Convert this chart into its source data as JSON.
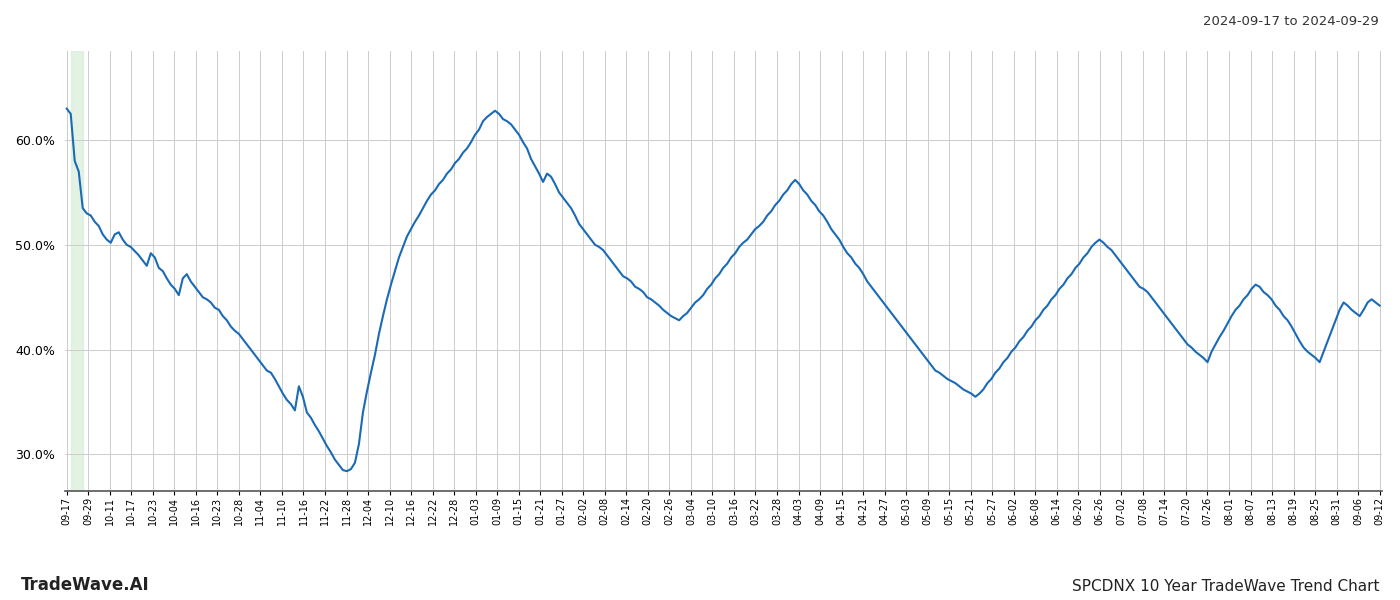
{
  "title_right": "2024-09-17 to 2024-09-29",
  "title_bottom_left": "TradeWave.AI",
  "title_bottom_right": "SPCDNX 10 Year TradeWave Trend Chart",
  "line_color": "#1a6ab5",
  "line_width": 1.5,
  "bg_color": "#ffffff",
  "grid_color": "#cccccc",
  "shade_color": "#d4ecd4",
  "shade_alpha": 0.65,
  "ylim_low": 0.265,
  "ylim_high": 0.685,
  "yticks": [
    0.3,
    0.4,
    0.5,
    0.6
  ],
  "shade_xstart": 1,
  "shade_xend": 4,
  "xtick_labels": [
    "09-17",
    "09-29",
    "10-11",
    "10-17",
    "10-23",
    "10-04",
    "10-16",
    "10-23",
    "10-28",
    "11-04",
    "11-10",
    "11-16",
    "11-22",
    "11-28",
    "12-04",
    "12-10",
    "12-16",
    "12-22",
    "12-28",
    "01-03",
    "01-09",
    "01-15",
    "01-21",
    "01-27",
    "02-02",
    "02-08",
    "02-14",
    "02-20",
    "02-26",
    "03-04",
    "03-10",
    "03-16",
    "03-22",
    "03-28",
    "04-03",
    "04-09",
    "04-15",
    "04-21",
    "04-27",
    "05-03",
    "05-09",
    "05-15",
    "05-21",
    "05-27",
    "06-02",
    "06-08",
    "06-14",
    "06-20",
    "06-26",
    "07-02",
    "07-08",
    "07-14",
    "07-20",
    "07-26",
    "08-01",
    "08-07",
    "08-13",
    "08-19",
    "08-25",
    "08-31",
    "09-06",
    "09-12"
  ],
  "values": [
    0.63,
    0.625,
    0.58,
    0.57,
    0.535,
    0.53,
    0.528,
    0.522,
    0.518,
    0.51,
    0.505,
    0.502,
    0.51,
    0.512,
    0.505,
    0.5,
    0.498,
    0.494,
    0.49,
    0.485,
    0.48,
    0.492,
    0.488,
    0.478,
    0.475,
    0.468,
    0.462,
    0.458,
    0.452,
    0.468,
    0.472,
    0.465,
    0.46,
    0.455,
    0.45,
    0.448,
    0.445,
    0.44,
    0.438,
    0.432,
    0.428,
    0.422,
    0.418,
    0.415,
    0.41,
    0.405,
    0.4,
    0.395,
    0.39,
    0.385,
    0.38,
    0.378,
    0.372,
    0.365,
    0.358,
    0.352,
    0.348,
    0.342,
    0.365,
    0.355,
    0.34,
    0.335,
    0.328,
    0.322,
    0.315,
    0.308,
    0.302,
    0.295,
    0.29,
    0.285,
    0.284,
    0.286,
    0.292,
    0.31,
    0.34,
    0.36,
    0.378,
    0.395,
    0.415,
    0.432,
    0.448,
    0.462,
    0.475,
    0.488,
    0.498,
    0.508,
    0.515,
    0.522,
    0.528,
    0.535,
    0.542,
    0.548,
    0.552,
    0.558,
    0.562,
    0.568,
    0.572,
    0.578,
    0.582,
    0.588,
    0.592,
    0.598,
    0.605,
    0.61,
    0.618,
    0.622,
    0.625,
    0.628,
    0.625,
    0.62,
    0.618,
    0.615,
    0.61,
    0.605,
    0.598,
    0.592,
    0.582,
    0.575,
    0.568,
    0.56,
    0.568,
    0.565,
    0.558,
    0.55,
    0.545,
    0.54,
    0.535,
    0.528,
    0.52,
    0.515,
    0.51,
    0.505,
    0.5,
    0.498,
    0.495,
    0.49,
    0.485,
    0.48,
    0.475,
    0.47,
    0.468,
    0.465,
    0.46,
    0.458,
    0.455,
    0.45,
    0.448,
    0.445,
    0.442,
    0.438,
    0.435,
    0.432,
    0.43,
    0.428,
    0.432,
    0.435,
    0.44,
    0.445,
    0.448,
    0.452,
    0.458,
    0.462,
    0.468,
    0.472,
    0.478,
    0.482,
    0.488,
    0.492,
    0.498,
    0.502,
    0.505,
    0.51,
    0.515,
    0.518,
    0.522,
    0.528,
    0.532,
    0.538,
    0.542,
    0.548,
    0.552,
    0.558,
    0.562,
    0.558,
    0.552,
    0.548,
    0.542,
    0.538,
    0.532,
    0.528,
    0.522,
    0.515,
    0.51,
    0.505,
    0.498,
    0.492,
    0.488,
    0.482,
    0.478,
    0.472,
    0.465,
    0.46,
    0.455,
    0.45,
    0.445,
    0.44,
    0.435,
    0.43,
    0.425,
    0.42,
    0.415,
    0.41,
    0.405,
    0.4,
    0.395,
    0.39,
    0.385,
    0.38,
    0.378,
    0.375,
    0.372,
    0.37,
    0.368,
    0.365,
    0.362,
    0.36,
    0.358,
    0.355,
    0.358,
    0.362,
    0.368,
    0.372,
    0.378,
    0.382,
    0.388,
    0.392,
    0.398,
    0.402,
    0.408,
    0.412,
    0.418,
    0.422,
    0.428,
    0.432,
    0.438,
    0.442,
    0.448,
    0.452,
    0.458,
    0.462,
    0.468,
    0.472,
    0.478,
    0.482,
    0.488,
    0.492,
    0.498,
    0.502,
    0.505,
    0.502,
    0.498,
    0.495,
    0.49,
    0.485,
    0.48,
    0.475,
    0.47,
    0.465,
    0.46,
    0.458,
    0.455,
    0.45,
    0.445,
    0.44,
    0.435,
    0.43,
    0.425,
    0.42,
    0.415,
    0.41,
    0.405,
    0.402,
    0.398,
    0.395,
    0.392,
    0.388,
    0.398,
    0.405,
    0.412,
    0.418,
    0.425,
    0.432,
    0.438,
    0.442,
    0.448,
    0.452,
    0.458,
    0.462,
    0.46,
    0.455,
    0.452,
    0.448,
    0.442,
    0.438,
    0.432,
    0.428,
    0.422,
    0.415,
    0.408,
    0.402,
    0.398,
    0.395,
    0.392,
    0.388,
    0.398,
    0.408,
    0.418,
    0.428,
    0.438,
    0.445,
    0.442,
    0.438,
    0.435,
    0.432,
    0.438,
    0.445,
    0.448,
    0.445,
    0.442
  ]
}
